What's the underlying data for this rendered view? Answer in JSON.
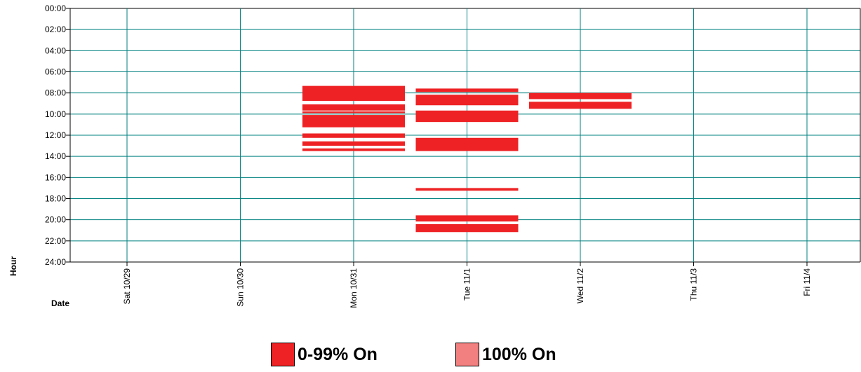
{
  "chart_data": {
    "type": "bar",
    "title": "",
    "xlabel": "Date",
    "ylabel": "Hour",
    "grid": true,
    "categories": [
      "Sat 10/29",
      "Sun 10/30",
      "Mon 10/31",
      "Tue 11/1",
      "Wed 11/2",
      "Thu 11/3",
      "Fri 11/4"
    ],
    "y_ticks": [
      "00:00",
      "02:00",
      "04:00",
      "06:00",
      "08:00",
      "10:00",
      "12:00",
      "14:00",
      "16:00",
      "18:00",
      "20:00",
      "22:00",
      "24:00"
    ],
    "ylim": [
      0,
      24
    ],
    "y_inverted": true,
    "legend": [
      {
        "label": "0-99% On",
        "color": "#ee2224"
      },
      {
        "label": "100% On",
        "color": "#f28080"
      }
    ],
    "series": [
      {
        "name": "0-99% On",
        "color": "#ee2224",
        "intervals": [
          {
            "date": "Mon 10/31",
            "start": "07:20",
            "end": "08:45"
          },
          {
            "date": "Mon 10/31",
            "start": "09:05",
            "end": "09:40"
          },
          {
            "date": "Mon 10/31",
            "start": "09:45",
            "end": "09:55"
          },
          {
            "date": "Mon 10/31",
            "start": "10:05",
            "end": "11:15"
          },
          {
            "date": "Mon 10/31",
            "start": "11:50",
            "end": "12:15"
          },
          {
            "date": "Mon 10/31",
            "start": "12:35",
            "end": "13:00"
          },
          {
            "date": "Mon 10/31",
            "start": "13:15",
            "end": "13:30"
          },
          {
            "date": "Tue 11/1",
            "start": "07:35",
            "end": "07:55"
          },
          {
            "date": "Tue 11/1",
            "start": "08:10",
            "end": "09:10"
          },
          {
            "date": "Tue 11/1",
            "start": "09:40",
            "end": "10:45"
          },
          {
            "date": "Tue 11/1",
            "start": "12:15",
            "end": "13:30"
          },
          {
            "date": "Tue 11/1",
            "start": "17:00",
            "end": "17:15"
          },
          {
            "date": "Tue 11/1",
            "start": "19:35",
            "end": "20:10"
          },
          {
            "date": "Tue 11/1",
            "start": "20:25",
            "end": "21:10"
          },
          {
            "date": "Wed 11/2",
            "start": "08:00",
            "end": "08:35"
          },
          {
            "date": "Wed 11/2",
            "start": "08:50",
            "end": "09:30"
          }
        ]
      },
      {
        "name": "100% On",
        "color": "#f28080",
        "intervals": []
      }
    ]
  }
}
